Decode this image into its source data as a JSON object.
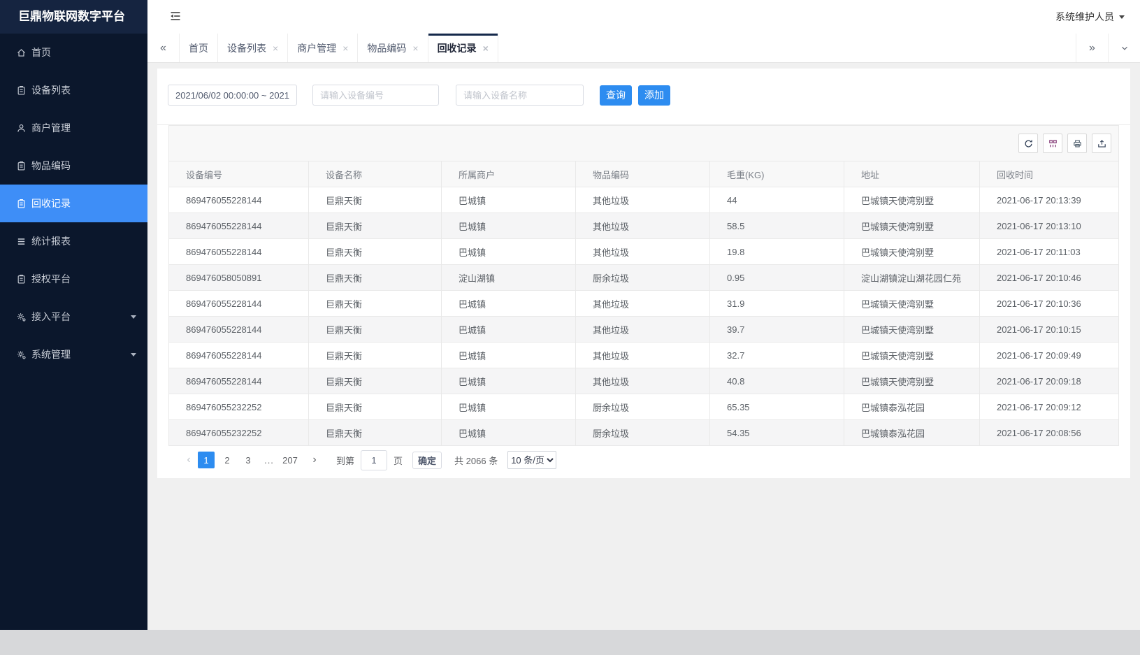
{
  "app": {
    "logo": "巨鼎物联网数字平台",
    "user": "系统维护人员"
  },
  "sidebar": {
    "items": [
      {
        "key": "home",
        "icon": "home",
        "label": "首页"
      },
      {
        "key": "device-list",
        "icon": "list",
        "label": "设备列表"
      },
      {
        "key": "merchant-mgmt",
        "icon": "user",
        "label": "商户管理"
      },
      {
        "key": "item-code",
        "icon": "list",
        "label": "物品编码"
      },
      {
        "key": "recycle-records",
        "icon": "list",
        "label": "回收记录",
        "active": true
      },
      {
        "key": "stats-report",
        "icon": "stats",
        "label": "统计报表"
      },
      {
        "key": "auth-platform",
        "icon": "list",
        "label": "授权平台"
      },
      {
        "key": "access-platform",
        "icon": "gear",
        "label": "接入平台",
        "expandable": true
      },
      {
        "key": "system-mgmt",
        "icon": "gear",
        "label": "系统管理",
        "expandable": true
      }
    ]
  },
  "tabs": [
    {
      "key": "home",
      "label": "首页",
      "closable": false
    },
    {
      "key": "device-list",
      "label": "设备列表",
      "closable": true
    },
    {
      "key": "merchant-mgmt",
      "label": "商户管理",
      "closable": true
    },
    {
      "key": "item-code",
      "label": "物品编码",
      "closable": true
    },
    {
      "key": "recycle-records",
      "label": "回收记录",
      "closable": true,
      "active": true
    }
  ],
  "filters": {
    "date_range": "2021/06/02 00:00:00 ~ 2021/",
    "device_code_placeholder": "请输入设备编号",
    "device_name_placeholder": "请输入设备名称",
    "query_label": "查询",
    "add_label": "添加"
  },
  "toolbar": {
    "buttons": [
      {
        "key": "refresh"
      },
      {
        "key": "columns"
      },
      {
        "key": "print"
      },
      {
        "key": "export"
      }
    ]
  },
  "table": {
    "columns": [
      "设备编号",
      "设备名称",
      "所属商户",
      "物品编码",
      "毛重(KG)",
      "地址",
      "回收时间"
    ],
    "rows": [
      [
        "869476055228144",
        "巨鼎天衡",
        "巴城镇",
        "其他垃圾",
        "44",
        "巴城镇天使湾别墅",
        "2021-06-17 20:13:39"
      ],
      [
        "869476055228144",
        "巨鼎天衡",
        "巴城镇",
        "其他垃圾",
        "58.5",
        "巴城镇天使湾别墅",
        "2021-06-17 20:13:10"
      ],
      [
        "869476055228144",
        "巨鼎天衡",
        "巴城镇",
        "其他垃圾",
        "19.8",
        "巴城镇天使湾别墅",
        "2021-06-17 20:11:03"
      ],
      [
        "869476058050891",
        "巨鼎天衡",
        "淀山湖镇",
        "厨余垃圾",
        "0.95",
        "淀山湖镇淀山湖花园仁苑",
        "2021-06-17 20:10:46"
      ],
      [
        "869476055228144",
        "巨鼎天衡",
        "巴城镇",
        "其他垃圾",
        "31.9",
        "巴城镇天使湾别墅",
        "2021-06-17 20:10:36"
      ],
      [
        "869476055228144",
        "巨鼎天衡",
        "巴城镇",
        "其他垃圾",
        "39.7",
        "巴城镇天使湾别墅",
        "2021-06-17 20:10:15"
      ],
      [
        "869476055228144",
        "巨鼎天衡",
        "巴城镇",
        "其他垃圾",
        "32.7",
        "巴城镇天使湾别墅",
        "2021-06-17 20:09:49"
      ],
      [
        "869476055228144",
        "巨鼎天衡",
        "巴城镇",
        "其他垃圾",
        "40.8",
        "巴城镇天使湾别墅",
        "2021-06-17 20:09:18"
      ],
      [
        "869476055232252",
        "巨鼎天衡",
        "巴城镇",
        "厨余垃圾",
        "65.35",
        "巴城镇泰泓花园",
        "2021-06-17 20:09:12"
      ],
      [
        "869476055232252",
        "巨鼎天衡",
        "巴城镇",
        "厨余垃圾",
        "54.35",
        "巴城镇泰泓花园",
        "2021-06-17 20:08:56"
      ]
    ]
  },
  "pagination": {
    "pages": [
      "1",
      "2",
      "3",
      "...",
      "207"
    ],
    "current_page": "1",
    "goto_label": "到第",
    "goto_value": "1",
    "page_unit": "页",
    "confirm_label": "确定",
    "total": "共 2066 条",
    "page_size": "10 条/页"
  },
  "colors": {
    "accent_blue": "#2d8cf0",
    "sidebar_active": "#3e8ef7",
    "sidebar_bg": "#0b172c",
    "tab_active_bar": "#15294b"
  }
}
